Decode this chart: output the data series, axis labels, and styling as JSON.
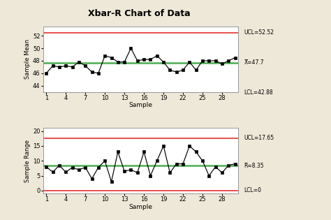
{
  "title": "Xbar-R Chart of Data",
  "xbar_data": [
    46,
    47.2,
    47,
    47.2,
    47,
    47.8,
    47.2,
    46.2,
    46,
    48.8,
    48.5,
    47.8,
    47.8,
    50,
    48,
    48.2,
    48.2,
    48.8,
    47.8,
    46.5,
    46.2,
    46.5,
    47.8,
    46.5,
    48,
    48,
    48,
    47.5,
    48,
    48.5
  ],
  "range_data": [
    8,
    6.2,
    8.5,
    6.2,
    7.8,
    7,
    7.8,
    4,
    7.8,
    10,
    3,
    13,
    6.5,
    7,
    6,
    13,
    5,
    10,
    15,
    6,
    9,
    9,
    15,
    13,
    10,
    5,
    8,
    6,
    8.5,
    9
  ],
  "xbar_ucl": 52.52,
  "xbar_cl": 47.7,
  "xbar_lcl": 42.88,
  "range_ucl": 17.65,
  "range_cl": 8.35,
  "range_lcl": 0,
  "xbar_ylim": [
    43,
    53.5
  ],
  "range_ylim": [
    -1,
    21
  ],
  "xbar_yticks": [
    44,
    46,
    48,
    50,
    52
  ],
  "range_yticks": [
    0,
    5,
    10,
    15,
    20
  ],
  "xlabel": "Sample",
  "xbar_ylabel": "Sample Mean",
  "range_ylabel": "Sample Range",
  "xticks": [
    1,
    4,
    7,
    10,
    13,
    16,
    19,
    22,
    25,
    28
  ],
  "line_color": "black",
  "ucl_color": "#e84040",
  "lcl_color": "#e84040",
  "cl_color": "#4caf50",
  "bg_color": "#ede8d8",
  "plot_bg": "white",
  "label_ucl_xbar": "UCL=52.52",
  "label_cl_xbar": "X̅=47.7",
  "label_lcl_xbar": "LCL=42.88",
  "label_ucl_range": "UCL=17.65",
  "label_cl_range": "R̅=8.35",
  "label_lcl_range": "LCL=0"
}
